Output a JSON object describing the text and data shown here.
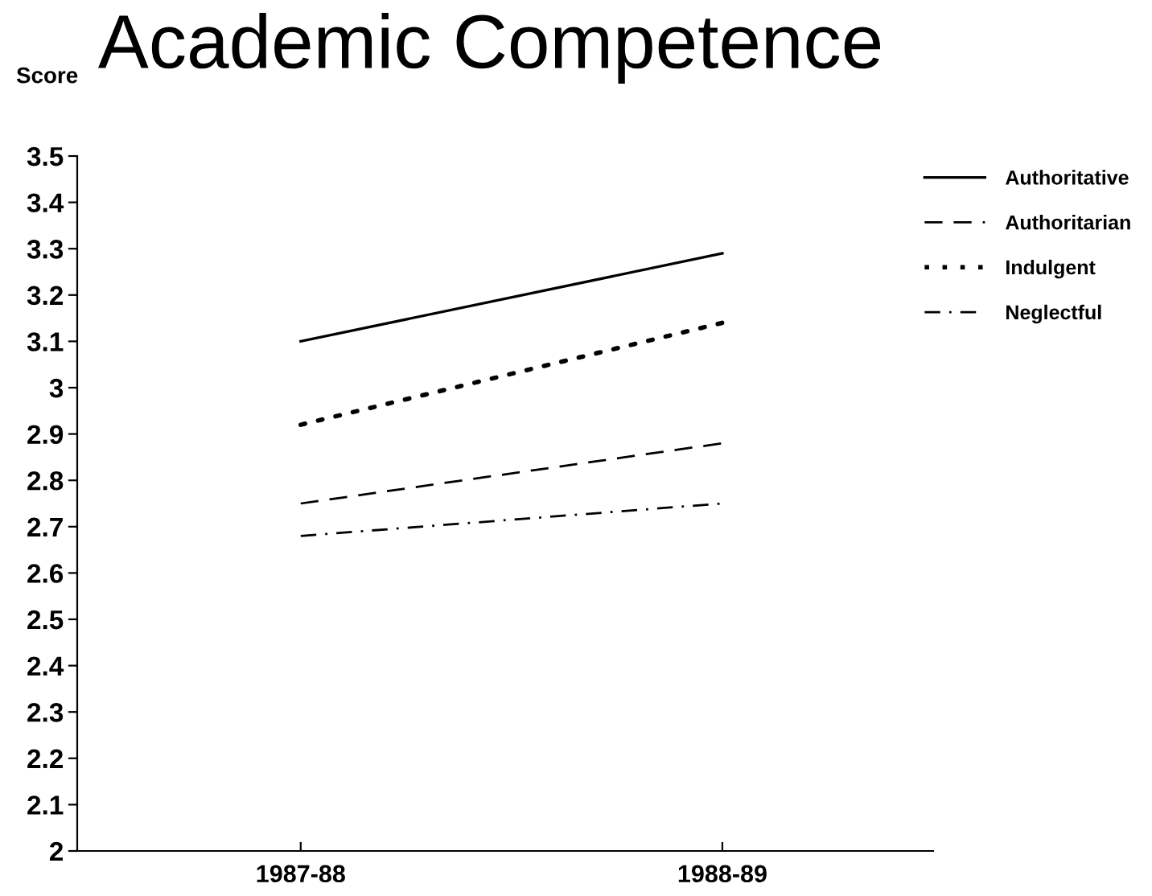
{
  "chart_data": {
    "type": "line",
    "title": "Academic Competence",
    "ylabel": "Score",
    "categories": [
      "1987-88",
      "1988-89"
    ],
    "series": [
      {
        "name": "Authoritative",
        "color": "#000000",
        "line_style": "solid",
        "values": [
          3.1,
          3.29
        ]
      },
      {
        "name": "Authoritarian",
        "color": "#000000",
        "line_style": "dashed",
        "values": [
          2.75,
          2.88
        ]
      },
      {
        "name": "Indulgent",
        "color": "#000000",
        "line_style": "dotted",
        "values": [
          2.92,
          3.14
        ]
      },
      {
        "name": "Neglectful",
        "color": "#000000",
        "line_style": "dashdot",
        "values": [
          2.68,
          2.75
        ]
      }
    ],
    "ylim": [
      2,
      3.5
    ],
    "yticks": [
      2,
      2.1,
      2.2,
      2.3,
      2.4,
      2.5,
      2.6,
      2.7,
      2.8,
      2.9,
      3,
      3.1,
      3.2,
      3.3,
      3.4,
      3.5
    ],
    "grid": false,
    "legend": "right",
    "marker": "none"
  }
}
